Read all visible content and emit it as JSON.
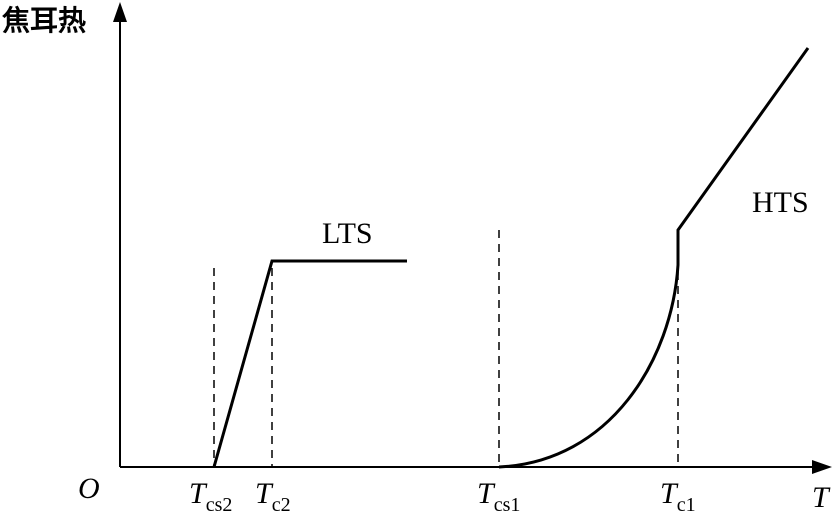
{
  "y_axis_label": "焦耳热",
  "x_axis_label": "T",
  "origin_label": "O",
  "curves": {
    "lts": "LTS",
    "hts": "HTS"
  },
  "ticks": {
    "tcs2": {
      "main": "T",
      "sub": "cs2"
    },
    "tc2": {
      "main": "T",
      "sub": "c2"
    },
    "tcs1": {
      "main": "T",
      "sub": "cs1"
    },
    "tc1": {
      "main": "T",
      "sub": "c1"
    }
  }
}
